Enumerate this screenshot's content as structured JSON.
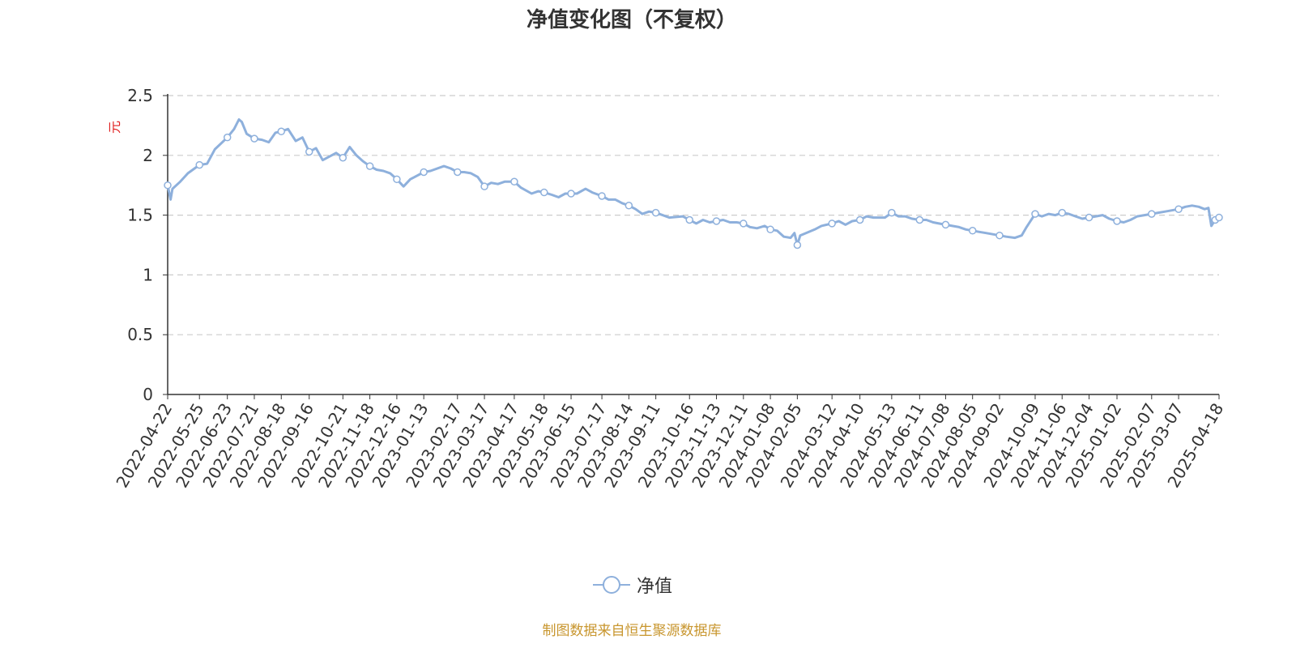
{
  "chart_data": {
    "type": "line",
    "title": "净值变化图（不复权）",
    "xlabel": "",
    "ylabel": "元",
    "ylim": [
      0,
      2.5
    ],
    "yticks": [
      "0",
      "0.5",
      "1",
      "1.5",
      "2",
      "2.5"
    ],
    "grid": true,
    "legend_position": "bottom-center",
    "colors": {
      "line": "#8eb0dc",
      "grid": "#cccccc",
      "axis": "#333333",
      "ylabel": "#e02020",
      "source": "#c8962e"
    },
    "x_tick_labels": [
      "2022-04-22",
      "2022-05-25",
      "2022-06-23",
      "2022-07-21",
      "2022-08-18",
      "2022-09-16",
      "2022-10-21",
      "2022-11-18",
      "2022-12-16",
      "2023-01-13",
      "2023-02-17",
      "2023-03-17",
      "2023-04-17",
      "2023-05-18",
      "2023-06-15",
      "2023-07-17",
      "2023-08-14",
      "2023-09-11",
      "2023-10-16",
      "2023-11-13",
      "2023-12-11",
      "2024-01-08",
      "2024-02-05",
      "2024-03-12",
      "2024-04-10",
      "2024-05-13",
      "2024-06-11",
      "2024-07-08",
      "2024-08-05",
      "2024-09-02",
      "2024-10-09",
      "2024-11-06",
      "2024-12-04",
      "2025-01-02",
      "2025-02-07",
      "2025-03-07",
      "2025-04-18"
    ],
    "series": [
      {
        "name": "净值",
        "x": [
          "2022-04-22",
          "2022-04-25",
          "2022-04-27",
          "2022-05-05",
          "2022-05-13",
          "2022-05-25",
          "2022-06-02",
          "2022-06-10",
          "2022-06-23",
          "2022-06-30",
          "2022-07-05",
          "2022-07-08",
          "2022-07-13",
          "2022-07-21",
          "2022-07-29",
          "2022-08-05",
          "2022-08-12",
          "2022-08-18",
          "2022-08-25",
          "2022-09-02",
          "2022-09-09",
          "2022-09-16",
          "2022-09-23",
          "2022-09-30",
          "2022-10-14",
          "2022-10-21",
          "2022-10-28",
          "2022-11-04",
          "2022-11-11",
          "2022-11-18",
          "2022-11-25",
          "2022-12-02",
          "2022-12-09",
          "2022-12-16",
          "2022-12-23",
          "2022-12-30",
          "2023-01-13",
          "2023-01-20",
          "2023-02-03",
          "2023-02-10",
          "2023-02-17",
          "2023-02-24",
          "2023-03-03",
          "2023-03-10",
          "2023-03-17",
          "2023-03-24",
          "2023-03-31",
          "2023-04-07",
          "2023-04-17",
          "2023-04-24",
          "2023-05-05",
          "2023-05-12",
          "2023-05-18",
          "2023-05-26",
          "2023-06-02",
          "2023-06-09",
          "2023-06-15",
          "2023-06-21",
          "2023-06-30",
          "2023-07-07",
          "2023-07-17",
          "2023-07-24",
          "2023-07-31",
          "2023-08-07",
          "2023-08-14",
          "2023-08-21",
          "2023-08-28",
          "2023-09-04",
          "2023-09-11",
          "2023-09-18",
          "2023-09-25",
          "2023-10-09",
          "2023-10-16",
          "2023-10-23",
          "2023-10-30",
          "2023-11-06",
          "2023-11-13",
          "2023-11-20",
          "2023-11-27",
          "2023-12-04",
          "2023-12-11",
          "2023-12-18",
          "2023-12-25",
          "2024-01-02",
          "2024-01-08",
          "2024-01-15",
          "2024-01-22",
          "2024-01-29",
          "2024-02-02",
          "2024-02-05",
          "2024-02-08",
          "2024-02-23",
          "2024-03-01",
          "2024-03-12",
          "2024-03-19",
          "2024-03-26",
          "2024-04-02",
          "2024-04-10",
          "2024-04-17",
          "2024-04-24",
          "2024-05-06",
          "2024-05-13",
          "2024-05-20",
          "2024-05-27",
          "2024-06-03",
          "2024-06-11",
          "2024-06-18",
          "2024-06-25",
          "2024-07-01",
          "2024-07-08",
          "2024-07-15",
          "2024-07-22",
          "2024-07-29",
          "2024-08-05",
          "2024-08-12",
          "2024-08-19",
          "2024-08-26",
          "2024-09-02",
          "2024-09-09",
          "2024-09-18",
          "2024-09-25",
          "2024-09-30",
          "2024-10-09",
          "2024-10-16",
          "2024-10-23",
          "2024-10-30",
          "2024-11-06",
          "2024-11-13",
          "2024-11-20",
          "2024-11-27",
          "2024-12-04",
          "2024-12-11",
          "2024-12-18",
          "2024-12-25",
          "2025-01-02",
          "2025-01-09",
          "2025-01-16",
          "2025-01-23",
          "2025-02-07",
          "2025-02-14",
          "2025-02-21",
          "2025-02-28",
          "2025-03-07",
          "2025-03-14",
          "2025-03-21",
          "2025-03-28",
          "2025-04-03",
          "2025-04-07",
          "2025-04-10",
          "2025-04-14",
          "2025-04-18"
        ],
        "values": [
          1.75,
          1.63,
          1.72,
          1.78,
          1.85,
          1.92,
          1.93,
          2.05,
          2.15,
          2.22,
          2.3,
          2.28,
          2.18,
          2.14,
          2.13,
          2.11,
          2.19,
          2.2,
          2.22,
          2.12,
          2.15,
          2.03,
          2.06,
          1.96,
          2.02,
          1.98,
          2.07,
          2.0,
          1.95,
          1.91,
          1.88,
          1.87,
          1.85,
          1.8,
          1.74,
          1.8,
          1.86,
          1.87,
          1.91,
          1.89,
          1.86,
          1.86,
          1.85,
          1.82,
          1.74,
          1.77,
          1.76,
          1.78,
          1.78,
          1.73,
          1.68,
          1.7,
          1.69,
          1.67,
          1.65,
          1.68,
          1.68,
          1.68,
          1.72,
          1.69,
          1.66,
          1.63,
          1.63,
          1.6,
          1.58,
          1.55,
          1.51,
          1.53,
          1.52,
          1.5,
          1.48,
          1.49,
          1.46,
          1.43,
          1.46,
          1.44,
          1.45,
          1.46,
          1.44,
          1.44,
          1.43,
          1.4,
          1.39,
          1.41,
          1.38,
          1.37,
          1.32,
          1.31,
          1.35,
          1.25,
          1.33,
          1.38,
          1.41,
          1.43,
          1.45,
          1.42,
          1.45,
          1.46,
          1.49,
          1.48,
          1.48,
          1.52,
          1.49,
          1.49,
          1.47,
          1.46,
          1.46,
          1.44,
          1.43,
          1.42,
          1.41,
          1.4,
          1.38,
          1.37,
          1.36,
          1.35,
          1.34,
          1.33,
          1.32,
          1.31,
          1.33,
          1.4,
          1.51,
          1.49,
          1.51,
          1.5,
          1.52,
          1.51,
          1.49,
          1.47,
          1.48,
          1.49,
          1.5,
          1.47,
          1.45,
          1.44,
          1.46,
          1.49,
          1.51,
          1.52,
          1.53,
          1.54,
          1.55,
          1.57,
          1.58,
          1.57,
          1.55,
          1.56,
          1.41,
          1.46,
          1.48
        ]
      }
    ],
    "markers": [
      "2022-04-22",
      "2022-05-25",
      "2022-06-23",
      "2022-07-21",
      "2022-08-18",
      "2022-09-16",
      "2022-10-21",
      "2022-11-18",
      "2022-12-16",
      "2023-01-13",
      "2023-02-17",
      "2023-03-17",
      "2023-04-17",
      "2023-05-18",
      "2023-06-15",
      "2023-07-17",
      "2023-08-14",
      "2023-09-11",
      "2023-10-16",
      "2023-11-13",
      "2023-12-11",
      "2024-01-08",
      "2024-02-05",
      "2024-03-12",
      "2024-04-10",
      "2024-05-13",
      "2024-06-11",
      "2024-07-08",
      "2024-08-05",
      "2024-09-02",
      "2024-10-09",
      "2024-11-06",
      "2024-12-04",
      "2025-01-02",
      "2025-02-07",
      "2025-03-07",
      "2025-04-14",
      "2025-04-18"
    ]
  },
  "legend": {
    "label": "净值"
  },
  "source_note": "制图数据来自恒生聚源数据库"
}
